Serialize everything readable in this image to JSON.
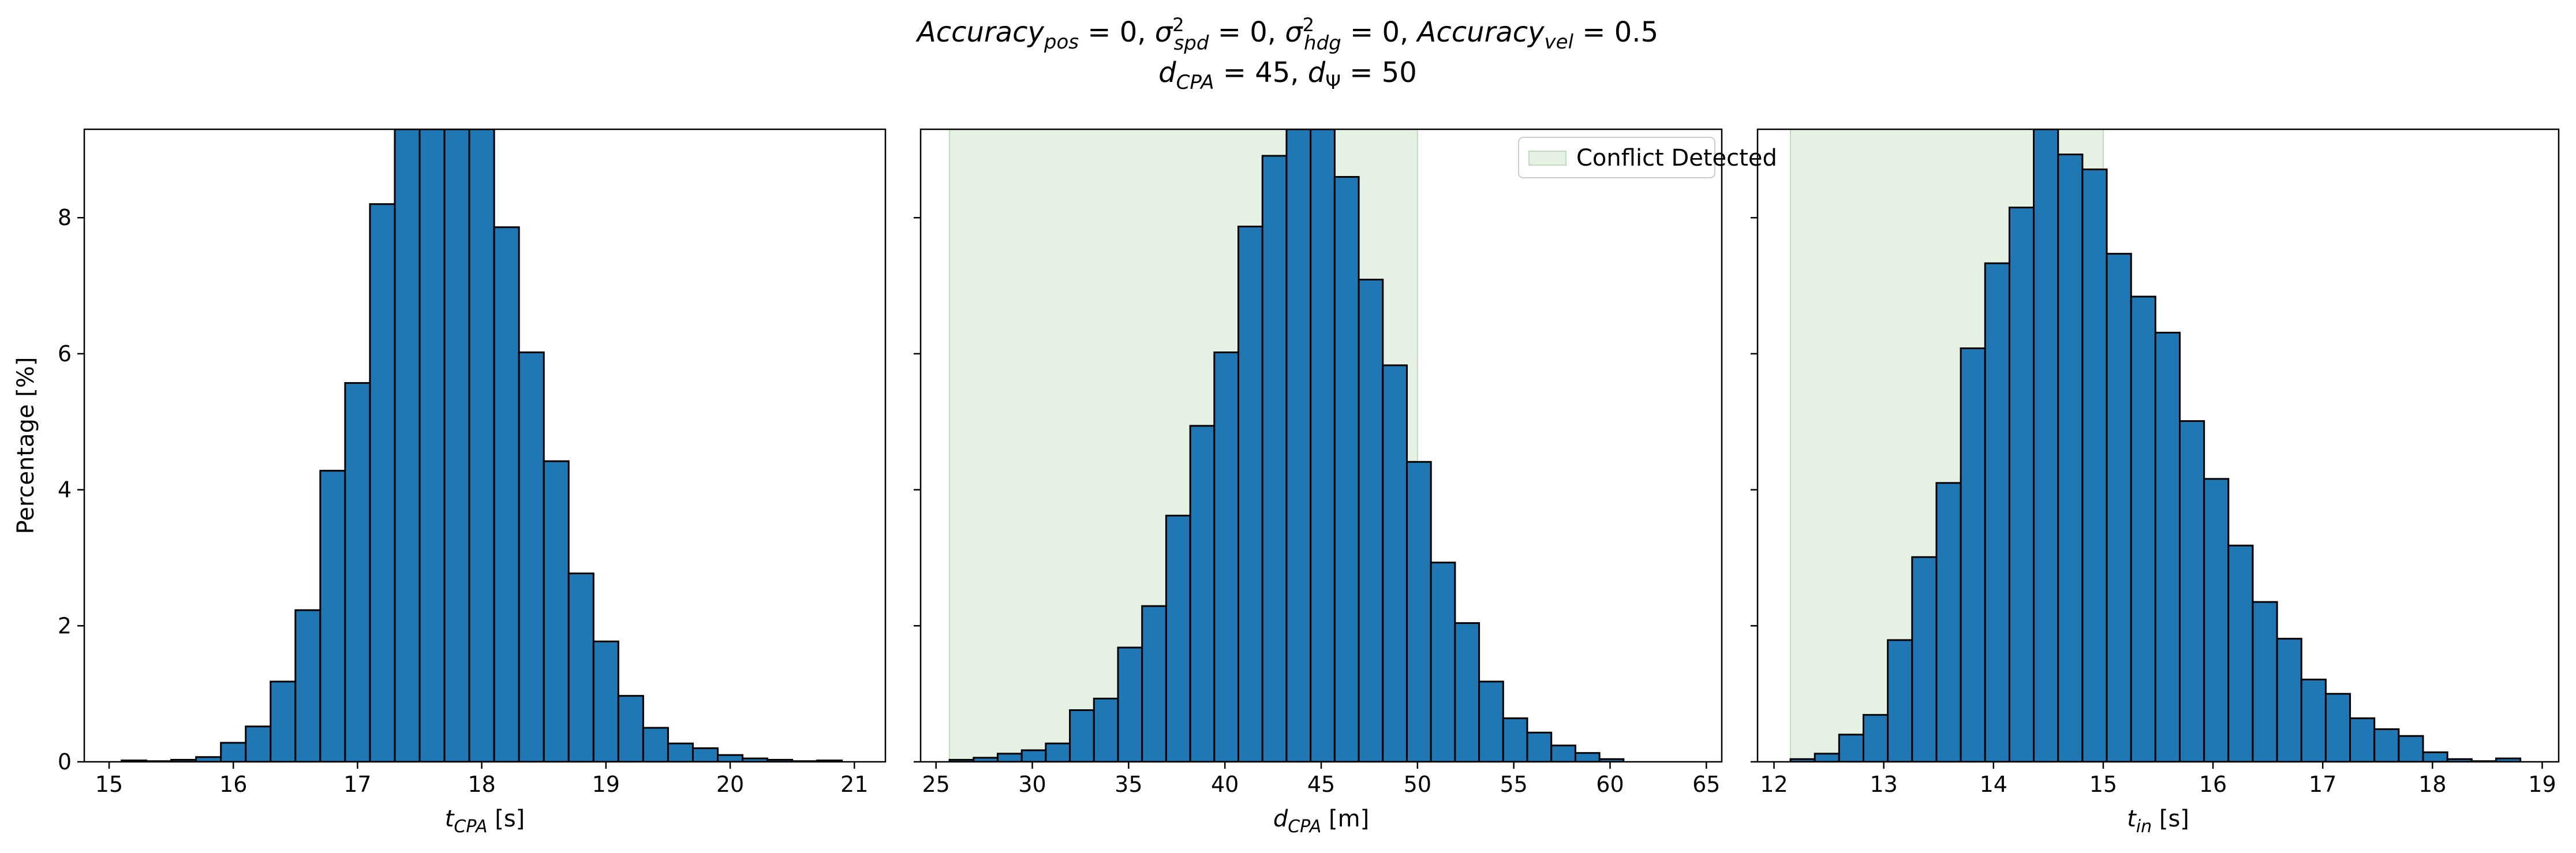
{
  "figure": {
    "title_line1": {
      "acc_pos_base": "Accuracy",
      "acc_pos_sub": "pos",
      "acc_pos_rest": " = 0, ",
      "sig_spd_base": "σ",
      "sig_spd_sup": "2",
      "sig_spd_sub": "spd",
      "sig_spd_rest": " = 0, ",
      "sig_hdg_base": "σ",
      "sig_hdg_sup": "2",
      "sig_hdg_sub": "hdg",
      "sig_hdg_rest": " = 0, ",
      "acc_vel_base": "Accuracy",
      "acc_vel_sub": "vel",
      "acc_vel_rest": " = 0.5"
    },
    "title_line2": {
      "d_cpa_base": "d",
      "d_cpa_sub": "CPA",
      "d_cpa_rest": " = 45, ",
      "d_psi_base": "d",
      "d_psi_sub": "Ψ",
      "d_psi_rest": " = 50"
    },
    "ylabel": "Percentage [%]",
    "colors": {
      "bar_fill": "#1f77b4",
      "bar_edge": "#000000",
      "shade": "#e5f1e3",
      "shade_edge": "#bfdcbc"
    }
  },
  "chart_data": [
    {
      "type": "bar",
      "xlabel": {
        "base": "t",
        "sub": "CPA",
        "rest": " [s]"
      },
      "ylabel": "Percentage [%]",
      "xlim": [
        14.8,
        21.25
      ],
      "ylim": [
        0,
        9.3
      ],
      "xticks": [
        15,
        16,
        17,
        18,
        19,
        20,
        21
      ],
      "yticks": [
        0,
        2,
        4,
        6,
        8
      ],
      "bin_start": 15.1,
      "bin_width": 0.2,
      "values": [
        0.02,
        0.01,
        0.03,
        0.07,
        0.28,
        0.52,
        1.18,
        2.23,
        4.28,
        5.57,
        8.2,
        9.3,
        9.3,
        9.3,
        9.3,
        7.86,
        6.02,
        4.42,
        2.77,
        1.77,
        0.97,
        0.5,
        0.27,
        0.2,
        0.1,
        0.05,
        0.03,
        0.01,
        0.02,
        0.0
      ],
      "shade_range": null
    },
    {
      "type": "bar",
      "xlabel": {
        "base": "d",
        "sub": "CPA",
        "rest": " [m]"
      },
      "xlim": [
        24.2,
        65.8
      ],
      "ylim": [
        0,
        9.3
      ],
      "xticks": [
        25,
        30,
        35,
        40,
        45,
        50,
        55,
        60,
        65
      ],
      "yticks": [
        0,
        2,
        4,
        6,
        8
      ],
      "bin_start": 25.7,
      "bin_width": 1.25,
      "values": [
        0.03,
        0.06,
        0.12,
        0.17,
        0.27,
        0.76,
        0.93,
        1.68,
        2.29,
        3.62,
        4.94,
        6.02,
        7.87,
        8.91,
        9.3,
        9.3,
        8.6,
        7.09,
        5.83,
        4.41,
        2.93,
        2.04,
        1.18,
        0.64,
        0.43,
        0.24,
        0.13,
        0.04
      ],
      "shade_range": [
        25.7,
        50
      ],
      "legend": {
        "label": "Conflict Detected",
        "position": "upper right"
      }
    },
    {
      "type": "bar",
      "xlabel": {
        "base": "t",
        "sub": "in",
        "rest": " [s]"
      },
      "xlim": [
        11.85,
        19.15
      ],
      "ylim": [
        0,
        9.3
      ],
      "xticks": [
        12,
        13,
        14,
        15,
        16,
        17,
        18,
        19
      ],
      "yticks": [
        0,
        2,
        4,
        6,
        8
      ],
      "bin_start": 12.15,
      "bin_width": 0.2217,
      "values": [
        0.04,
        0.12,
        0.4,
        0.69,
        1.79,
        3.01,
        4.1,
        6.08,
        7.33,
        8.15,
        9.3,
        8.93,
        8.71,
        7.47,
        6.84,
        6.31,
        5.01,
        4.16,
        3.18,
        2.35,
        1.81,
        1.21,
        1.0,
        0.64,
        0.48,
        0.38,
        0.14,
        0.04,
        0.01,
        0.05
      ],
      "shade_range": [
        12.15,
        15
      ]
    }
  ]
}
